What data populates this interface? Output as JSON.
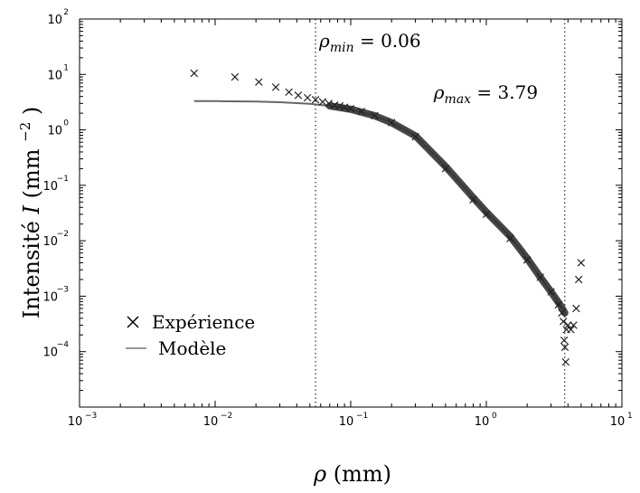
{
  "chart_data": {
    "type": "scatter",
    "xscale": "log",
    "yscale": "log",
    "xlim": [
      0.001,
      10
    ],
    "ylim": [
      1e-05,
      100
    ],
    "x_ticks": [
      {
        "base": "10",
        "exp": "−3",
        "value": 0.001
      },
      {
        "base": "10",
        "exp": "−2",
        "value": 0.01
      },
      {
        "base": "10",
        "exp": "−1",
        "value": 0.1
      },
      {
        "base": "10",
        "exp": "0",
        "value": 1
      },
      {
        "base": "10",
        "exp": "1",
        "value": 10
      }
    ],
    "y_ticks": [
      {
        "base": "10",
        "exp": "2",
        "value": 100
      },
      {
        "base": "10",
        "exp": "1",
        "value": 10
      },
      {
        "base": "10",
        "exp": "0",
        "value": 1
      },
      {
        "base": "10",
        "exp": "−1",
        "value": 0.1
      },
      {
        "base": "10",
        "exp": "−2",
        "value": 0.01
      },
      {
        "base": "10",
        "exp": "−3",
        "value": 0.001
      },
      {
        "base": "10",
        "exp": "−4",
        "value": 0.0001
      }
    ],
    "xlabel": {
      "symbol": "ρ",
      "unit": "(mm)"
    },
    "ylabel": {
      "text": "Intensité",
      "symbol": "I",
      "unit": "(mm",
      "unit_exp": "−2",
      "unit_close": ")"
    },
    "grid": false,
    "legend_placement": "bottom-left",
    "annotations": [
      {
        "symbol": "ρ",
        "sub": "min",
        "text": "= 0.06",
        "x": 0.055
      },
      {
        "symbol": "ρ",
        "sub": "max",
        "text": "= 3.79",
        "x": 3.79
      }
    ],
    "series": [
      {
        "name": "Expérience",
        "marker": "x",
        "color": "#222222",
        "x": [
          0.007,
          0.014,
          0.021,
          0.028,
          0.035,
          0.041,
          0.048,
          0.055,
          0.062,
          0.069,
          0.076,
          0.083,
          0.09,
          0.1,
          0.12,
          0.15,
          0.2,
          0.3,
          0.5,
          0.8,
          1.0,
          1.5,
          2.0,
          2.5,
          3.0,
          3.4,
          3.6,
          3.7,
          3.75,
          3.8,
          3.85,
          3.9,
          4.0,
          4.2,
          4.4,
          4.6,
          4.8,
          5.0
        ],
        "y": [
          10.5,
          9.0,
          7.3,
          5.9,
          4.8,
          4.2,
          3.8,
          3.5,
          3.2,
          3.0,
          2.8,
          2.7,
          2.55,
          2.4,
          2.15,
          1.8,
          1.35,
          0.75,
          0.2,
          0.055,
          0.03,
          0.011,
          0.0045,
          0.0022,
          0.0012,
          0.0007,
          0.0005,
          0.00035,
          0.00016,
          0.00012,
          6.5e-05,
          0.00025,
          0.0003,
          0.00025,
          0.0003,
          0.0006,
          0.002,
          0.004
        ]
      },
      {
        "name": "Modèle",
        "marker": "line",
        "color": "#666666",
        "x": [
          0.007,
          0.01,
          0.02,
          0.03,
          0.05,
          0.07,
          0.1,
          0.15,
          0.2,
          0.3,
          0.5,
          0.8,
          1.0,
          1.5,
          2.0,
          2.5,
          3.0,
          3.5,
          3.79
        ],
        "y": [
          3.3,
          3.3,
          3.25,
          3.15,
          2.95,
          2.7,
          2.35,
          1.8,
          1.35,
          0.78,
          0.22,
          0.06,
          0.033,
          0.012,
          0.0048,
          0.0022,
          0.0012,
          0.0007,
          0.0005
        ]
      }
    ]
  }
}
